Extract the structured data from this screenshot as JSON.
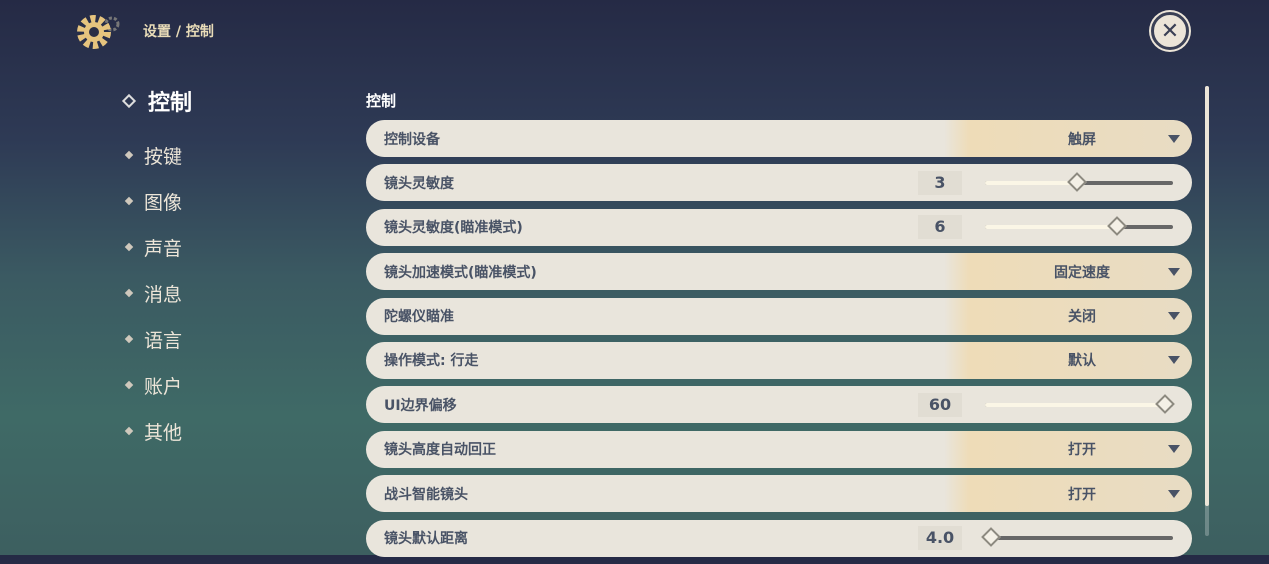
{
  "header": {
    "breadcrumb": "设置 / 控制",
    "close_icon": "close-icon"
  },
  "nav": {
    "items": [
      {
        "label": "控制",
        "active": true
      },
      {
        "label": "按键"
      },
      {
        "label": "图像"
      },
      {
        "label": "声音"
      },
      {
        "label": "消息"
      },
      {
        "label": "语言"
      },
      {
        "label": "账户"
      },
      {
        "label": "其他"
      }
    ]
  },
  "section_title": "控制",
  "rows": [
    {
      "label": "控制设备",
      "type": "dropdown",
      "value": "触屏"
    },
    {
      "label": "镜头灵敏度",
      "type": "slider",
      "value": "3",
      "fraction": 0.49
    },
    {
      "label": "镜头灵敏度(瞄准模式)",
      "type": "slider",
      "value": "6",
      "fraction": 0.7
    },
    {
      "label": "镜头加速模式(瞄准模式)",
      "type": "dropdown",
      "value": "固定速度"
    },
    {
      "label": "陀螺仪瞄准",
      "type": "dropdown",
      "value": "关闭"
    },
    {
      "label": "操作模式: 行走",
      "type": "dropdown",
      "value": "默认"
    },
    {
      "label": "UI边界偏移",
      "type": "slider",
      "value": "60",
      "fraction": 0.96
    },
    {
      "label": "镜头高度自动回正",
      "type": "dropdown",
      "value": "打开"
    },
    {
      "label": "战斗智能镜头",
      "type": "dropdown",
      "value": "打开"
    },
    {
      "label": "镜头默认距离",
      "type": "slider",
      "value": "4.0",
      "fraction": 0.03
    }
  ]
}
